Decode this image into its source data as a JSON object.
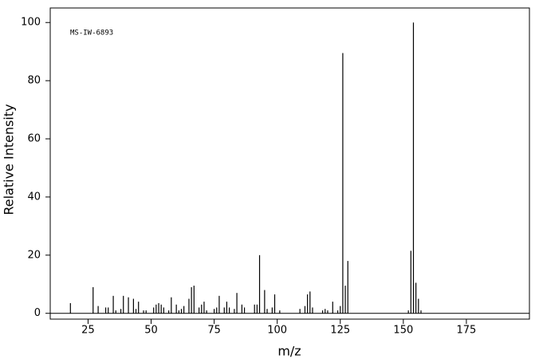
{
  "chart_data": {
    "type": "bar",
    "annotation": "MS-IW-6893",
    "x_label": "m/z",
    "y_label": "Relative Intensity",
    "x": [
      18,
      27,
      29,
      32,
      33,
      35,
      36,
      38,
      39,
      41,
      43,
      44,
      45,
      47,
      48,
      51,
      52,
      53,
      54,
      55,
      57,
      58,
      60,
      61,
      62,
      63,
      65,
      66,
      67,
      69,
      70,
      71,
      72,
      75,
      76,
      77,
      79,
      80,
      81,
      83,
      84,
      86,
      87,
      91,
      92,
      93,
      95,
      96,
      98,
      99,
      101,
      109,
      111,
      112,
      113,
      114,
      118,
      119,
      120,
      122,
      124,
      125,
      126,
      127,
      128,
      152,
      153,
      154,
      155,
      156,
      157
    ],
    "values": [
      3.5,
      9,
      2.5,
      2,
      2,
      6,
      1,
      1.5,
      6,
      5.5,
      5,
      1.5,
      4,
      1,
      1,
      2,
      3,
      3.5,
      3,
      2,
      1,
      5.5,
      3,
      1,
      1.5,
      2.5,
      5,
      9,
      9.5,
      2,
      3,
      4,
      1,
      1.5,
      2,
      6,
      2,
      4,
      2,
      1.5,
      7,
      3,
      2,
      3,
      3,
      20,
      8,
      1.5,
      2,
      6.5,
      1,
      1.5,
      2.5,
      6.5,
      7.5,
      2,
      1,
      1.5,
      1,
      4,
      1,
      2.5,
      89.5,
      9.5,
      18,
      1,
      21.5,
      100,
      10.5,
      5,
      1
    ],
    "color": "#000000",
    "xlim": [
      10,
      200
    ],
    "xticks": [
      25,
      50,
      75,
      100,
      125,
      150,
      175
    ],
    "ylim": [
      -2,
      105
    ],
    "yticks": [
      0,
      20,
      40,
      60,
      80,
      100
    ]
  }
}
